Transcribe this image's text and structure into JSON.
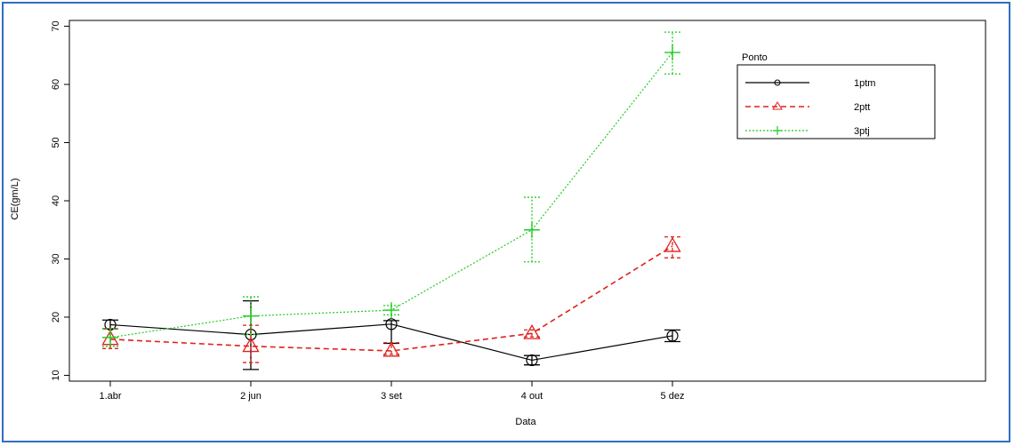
{
  "chart_data": {
    "type": "line",
    "title": "",
    "xlabel": "Data",
    "ylabel": "CE(gm/L)",
    "categories": [
      "1.abr",
      "2 jun",
      "3 set",
      "4 out",
      "5 dez"
    ],
    "yticks": [
      "10",
      "20",
      "30",
      "40",
      "50",
      "60",
      "70"
    ],
    "ylim": [
      9,
      71
    ],
    "grid": false,
    "legend": {
      "title": "Ponto",
      "placement": "top-right",
      "entries": [
        "1ptm",
        "2ptt",
        "3ptj"
      ]
    },
    "series": [
      {
        "name": "1ptm",
        "color": "#000000",
        "marker": "circle",
        "line": "solid",
        "values": [
          18.7,
          17.0,
          18.8,
          12.6,
          16.8
        ],
        "err_low": [
          18.0,
          11.0,
          15.5,
          11.8,
          15.8
        ],
        "err_high": [
          19.5,
          22.8,
          19.4,
          13.4,
          17.8
        ]
      },
      {
        "name": "2ptt",
        "color": "#e0201b",
        "marker": "triangle",
        "line": "dashed",
        "values": [
          16.2,
          15.0,
          14.2,
          17.2,
          32.2
        ],
        "err_low": [
          14.6,
          12.2,
          13.6,
          16.6,
          30.2
        ],
        "err_high": [
          18.0,
          18.6,
          15.6,
          17.8,
          33.8
        ]
      },
      {
        "name": "3ptj",
        "color": "#22cc22",
        "marker": "plus",
        "line": "dotted",
        "values": [
          16.5,
          20.2,
          21.2,
          35.0,
          65.5
        ],
        "err_low": [
          15.0,
          17.0,
          20.4,
          29.5,
          61.8
        ],
        "err_high": [
          18.0,
          23.5,
          22.0,
          40.6,
          69.0
        ]
      }
    ]
  }
}
